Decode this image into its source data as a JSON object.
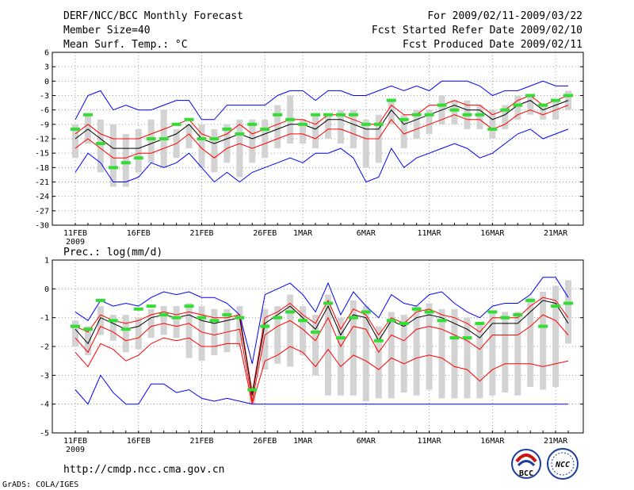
{
  "header": {
    "title": "DERF/NCC/BCC Monthly Forecast",
    "member_size": "Member Size=40",
    "variable": "Mean Surf. Temp.: °C",
    "period": "For 2009/02/11-2009/03/22",
    "started": "Fcst Started Refer Date 2009/02/10",
    "produced": "Fcst Produced Date 2009/02/11"
  },
  "footer": {
    "url": "http://cmdp.ncc.cma.gov.cn",
    "grads": "GrADS: COLA/IGES",
    "logo_bcc": "BCC",
    "logo_ncc": "NCC"
  },
  "colors": {
    "blue": "#0000ff",
    "red": "#ff0000",
    "black": "#000000",
    "green": "#33dd33",
    "box": "#d3d3d3",
    "grid": "#999999"
  },
  "chart_data": [
    {
      "type": "line",
      "title": "Mean Surf. Temp.: °C",
      "xlabel": "",
      "ylabel": "",
      "ylim": [
        -30,
        6
      ],
      "yticks": [
        6,
        3,
        0,
        -3,
        -6,
        -9,
        -12,
        -15,
        -18,
        -21,
        -24,
        -27,
        -30
      ],
      "x_tick_labels": [
        "11FEB",
        "16FEB",
        "21FEB",
        "26FEB",
        "1MAR",
        "6MAR",
        "11MAR",
        "16MAR",
        "21MAR"
      ],
      "x_tick_days": [
        0,
        5,
        10,
        15,
        18,
        23,
        28,
        33,
        38
      ],
      "x_year_label": "2009",
      "days": 40,
      "series": [
        {
          "name": "max",
          "color": "blue",
          "values": [
            -8,
            -3,
            -2,
            -6,
            -5,
            -6,
            -6,
            -5,
            -4,
            -4,
            -8,
            -8,
            -5,
            -5,
            -5,
            -5,
            -3,
            -2,
            -2,
            -4,
            -2,
            -2,
            -3,
            -3,
            -2,
            -1,
            -2,
            -1,
            -2,
            0,
            0,
            0,
            -1,
            -3,
            -2,
            -2,
            -1,
            0,
            -1,
            -1
          ]
        },
        {
          "name": "upper",
          "color": "red",
          "values": [
            -11,
            -9,
            -11,
            -12,
            -12,
            -12,
            -11,
            -10,
            -9,
            -8,
            -11,
            -12,
            -11,
            -9,
            -11,
            -10,
            -9,
            -8,
            -8,
            -9,
            -7,
            -7,
            -8,
            -9,
            -9,
            -5,
            -7,
            -7,
            -5,
            -5,
            -4,
            -5,
            -5,
            -7,
            -6,
            -4,
            -3,
            -5,
            -4,
            -3
          ]
        },
        {
          "name": "mean",
          "color": "black",
          "values": [
            -12,
            -10,
            -12,
            -14,
            -14,
            -14,
            -13,
            -12,
            -11,
            -9,
            -12,
            -13,
            -12,
            -11,
            -12,
            -11,
            -10,
            -9,
            -9,
            -10,
            -8,
            -8,
            -9,
            -10,
            -10,
            -6,
            -9,
            -8,
            -7,
            -6,
            -5,
            -6,
            -6,
            -8,
            -7,
            -5,
            -4,
            -6,
            -5,
            -4
          ]
        },
        {
          "name": "lower",
          "color": "red",
          "values": [
            -14,
            -12,
            -14,
            -16,
            -16,
            -15,
            -15,
            -14,
            -13,
            -11,
            -14,
            -16,
            -14,
            -13,
            -14,
            -13,
            -12,
            -11,
            -11,
            -12,
            -10,
            -10,
            -11,
            -12,
            -12,
            -8,
            -11,
            -10,
            -9,
            -8,
            -7,
            -8,
            -8,
            -10,
            -9,
            -7,
            -6,
            -7,
            -6,
            -5
          ]
        },
        {
          "name": "min",
          "color": "blue",
          "values": [
            -19,
            -15,
            -17,
            -21,
            -21,
            -20,
            -17,
            -18,
            -17,
            -15,
            -18,
            -21,
            -19,
            -21,
            -19,
            -18,
            -17,
            -16,
            -17,
            -15,
            -15,
            -14,
            -16,
            -21,
            -20,
            -14,
            -18,
            -16,
            -15,
            -14,
            -13,
            -14,
            -16,
            -15,
            -13,
            -11,
            -10,
            -12,
            -11,
            -10
          ]
        },
        {
          "name": "box_high",
          "color": "gray",
          "values": [
            -9,
            -7,
            -8,
            -9,
            -11,
            -10,
            -8,
            -6,
            -10,
            -9,
            -9,
            -10,
            -9,
            -8,
            -8,
            -8,
            -5,
            -3,
            -8,
            -7,
            -7,
            -6,
            -6,
            -8,
            -7,
            -4,
            -7,
            -6,
            -6,
            -3,
            -4,
            -4,
            -5,
            -6,
            -5,
            -3,
            -3,
            -5,
            -4,
            -2
          ]
        },
        {
          "name": "box_low",
          "color": "gray",
          "values": [
            -16,
            -13,
            -19,
            -22,
            -22,
            -19,
            -17,
            -18,
            -16,
            -14,
            -18,
            -19,
            -17,
            -20,
            -17,
            -16,
            -14,
            -13,
            -13,
            -14,
            -12,
            -13,
            -14,
            -18,
            -17,
            -9,
            -14,
            -12,
            -11,
            -9,
            -9,
            -10,
            -10,
            -12,
            -10,
            -8,
            -7,
            -8,
            -8,
            -6
          ]
        },
        {
          "name": "obs",
          "color": "green",
          "values": [
            -10,
            -7,
            -13,
            -18,
            -17,
            -16,
            -12,
            -12,
            -9,
            -8,
            -12,
            -12,
            -10,
            -11,
            -9,
            -10,
            -7,
            -8,
            -9,
            -7,
            -7,
            -7,
            -7,
            -9,
            -9,
            -4,
            -8,
            -7,
            -7,
            -5,
            -6,
            -7,
            -7,
            -10,
            -6,
            -5,
            -3,
            -5,
            -4,
            -3
          ]
        }
      ]
    },
    {
      "type": "line",
      "title": "Prec.: log(mm/d)",
      "xlabel": "",
      "ylabel": "",
      "ylim": [
        -5,
        1
      ],
      "yticks": [
        1,
        0,
        -1,
        -2,
        -3,
        -4,
        -5
      ],
      "x_tick_labels": [
        "11FEB",
        "16FEB",
        "21FEB",
        "26FEB",
        "1MAR",
        "6MAR",
        "11MAR",
        "16MAR",
        "21MAR"
      ],
      "x_tick_days": [
        0,
        5,
        10,
        15,
        18,
        23,
        28,
        33,
        38
      ],
      "x_year_label": "2009",
      "days": 40,
      "series": [
        {
          "name": "max",
          "color": "blue",
          "values": [
            -0.8,
            -1.1,
            -0.4,
            -0.6,
            -0.5,
            -0.6,
            -0.3,
            -0.1,
            -0.2,
            -0.1,
            -0.3,
            -0.3,
            -0.5,
            -0.9,
            -2.6,
            -0.2,
            0.0,
            0.2,
            -0.2,
            -0.8,
            0.2,
            -0.9,
            -0.1,
            -0.6,
            -1.0,
            -0.2,
            -0.5,
            -0.6,
            -0.2,
            -0.1,
            -0.5,
            -0.8,
            -1.0,
            -0.6,
            -0.5,
            -0.5,
            -0.2,
            0.4,
            0.4,
            -0.3
          ]
        },
        {
          "name": "upper",
          "color": "red",
          "values": [
            -1.3,
            -1.5,
            -0.9,
            -1.1,
            -1.2,
            -1.1,
            -0.9,
            -0.8,
            -0.9,
            -0.8,
            -0.9,
            -1.0,
            -1.0,
            -0.9,
            -3.6,
            -1.0,
            -0.8,
            -0.5,
            -0.9,
            -1.2,
            -0.4,
            -1.4,
            -0.7,
            -0.9,
            -1.6,
            -1.0,
            -1.2,
            -0.8,
            -0.7,
            -0.9,
            -1.0,
            -1.2,
            -1.5,
            -1.0,
            -1.0,
            -1.0,
            -0.6,
            -0.3,
            -0.4,
            -1.0
          ]
        },
        {
          "name": "mean",
          "color": "black",
          "values": [
            -1.4,
            -1.9,
            -1.0,
            -1.2,
            -1.4,
            -1.3,
            -1.0,
            -0.9,
            -1.0,
            -0.9,
            -1.1,
            -1.2,
            -1.1,
            -1.0,
            -3.7,
            -1.2,
            -0.9,
            -0.6,
            -1.0,
            -1.4,
            -0.6,
            -1.6,
            -0.9,
            -1.0,
            -1.8,
            -1.1,
            -1.3,
            -1.0,
            -0.9,
            -1.0,
            -1.2,
            -1.4,
            -1.7,
            -1.2,
            -1.2,
            -1.2,
            -0.8,
            -0.4,
            -0.5,
            -1.2
          ]
        },
        {
          "name": "lower",
          "color": "red",
          "values": [
            -1.7,
            -2.2,
            -1.3,
            -1.5,
            -1.8,
            -1.7,
            -1.3,
            -1.2,
            -1.3,
            -1.2,
            -1.5,
            -1.6,
            -1.5,
            -1.4,
            -3.9,
            -1.6,
            -1.3,
            -1.1,
            -1.4,
            -1.8,
            -1.0,
            -2.0,
            -1.3,
            -1.4,
            -2.2,
            -1.6,
            -1.8,
            -1.4,
            -1.3,
            -1.4,
            -1.6,
            -1.8,
            -2.1,
            -1.6,
            -1.6,
            -1.6,
            -1.3,
            -0.9,
            -1.1,
            -1.6
          ]
        },
        {
          "name": "lowest",
          "color": "red",
          "values": [
            -2.2,
            -2.7,
            -1.9,
            -2.1,
            -2.5,
            -2.3,
            -1.9,
            -1.7,
            -1.8,
            -1.7,
            -2.0,
            -2.0,
            -1.9,
            -1.9,
            -4.0,
            -2.5,
            -2.3,
            -2.0,
            -2.2,
            -2.7,
            -2.1,
            -2.7,
            -2.3,
            -2.5,
            -2.8,
            -2.4,
            -2.6,
            -2.4,
            -2.3,
            -2.4,
            -2.7,
            -2.8,
            -3.2,
            -2.8,
            -2.6,
            -2.6,
            -2.6,
            -2.7,
            -2.6,
            -2.5
          ]
        },
        {
          "name": "min",
          "color": "blue",
          "values": [
            -3.5,
            -4.0,
            -3.0,
            -3.6,
            -4.0,
            -4.0,
            -3.3,
            -3.3,
            -3.6,
            -3.5,
            -3.8,
            -3.9,
            -3.8,
            -3.9,
            -4.0,
            -4.0,
            -4.0,
            -4.0,
            -4.0,
            -4.0,
            -4.0,
            -4.0,
            -4.0,
            -4.0,
            -4.0,
            -4.0,
            -4.0,
            -4.0,
            -4.0,
            -4.0,
            -4.0,
            -4.0,
            -4.0,
            -4.0,
            -4.0,
            -4.0,
            -4.0,
            -4.0,
            -4.0,
            -4.0
          ]
        },
        {
          "name": "box_high",
          "color": "gray",
          "values": [
            -1.1,
            -1.3,
            -0.6,
            -0.9,
            -0.9,
            -1.0,
            -0.7,
            -0.6,
            -0.6,
            -0.5,
            -0.6,
            -0.7,
            -0.7,
            -0.6,
            -3.4,
            -0.7,
            -0.6,
            -0.2,
            -0.6,
            -0.9,
            -0.2,
            -1.0,
            -0.4,
            -0.6,
            -1.3,
            -0.8,
            -0.9,
            -0.6,
            -0.5,
            -0.7,
            -0.7,
            -1.0,
            -1.2,
            -0.8,
            -0.8,
            -0.8,
            -0.3,
            -0.1,
            0.1,
            0.3
          ]
        },
        {
          "name": "box_low",
          "color": "gray",
          "values": [
            -2.0,
            -2.3,
            -1.6,
            -1.8,
            -2.2,
            -2.1,
            -1.7,
            -1.6,
            -1.7,
            -2.4,
            -2.5,
            -2.3,
            -2.2,
            -2.0,
            -4.0,
            -2.8,
            -2.6,
            -2.7,
            -2.3,
            -3.0,
            -3.7,
            -3.7,
            -3.7,
            -3.9,
            -3.8,
            -3.8,
            -3.6,
            -3.7,
            -3.5,
            -3.8,
            -3.8,
            -3.8,
            -3.8,
            -3.7,
            -3.6,
            -3.7,
            -3.4,
            -3.5,
            -3.4,
            -1.9
          ]
        },
        {
          "name": "obs",
          "color": "green",
          "values": [
            -1.3,
            -1.4,
            -0.4,
            -1.1,
            -1.4,
            -0.7,
            -0.6,
            -0.9,
            -1.0,
            -0.6,
            -1.0,
            -1.1,
            -0.9,
            -1.0,
            -3.5,
            -1.3,
            -1.0,
            -0.8,
            -1.1,
            -1.5,
            -0.5,
            -1.7,
            -1.0,
            -0.8,
            -1.8,
            -1.1,
            -1.2,
            -0.7,
            -0.8,
            -1.1,
            -1.7,
            -1.7,
            -1.2,
            -0.8,
            -1.0,
            -0.9,
            -0.4,
            -1.3,
            -0.6,
            -0.5
          ]
        }
      ]
    }
  ]
}
